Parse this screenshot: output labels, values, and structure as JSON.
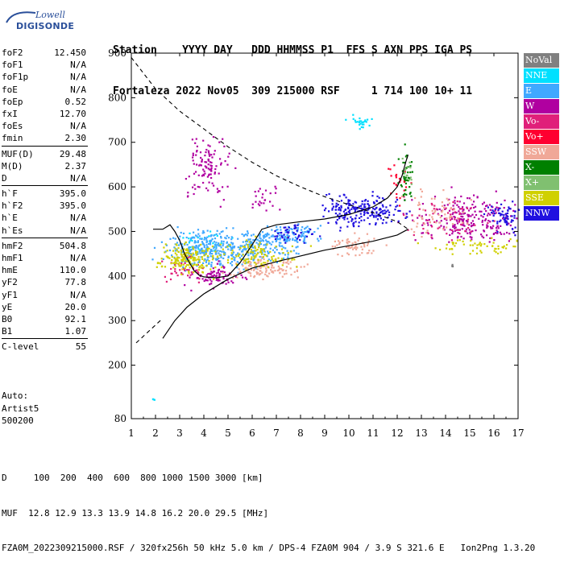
{
  "logo": {
    "brand_top": "Lowell",
    "brand_main": "DIGISONDE"
  },
  "header": {
    "line1": "Station    YYYY DAY   DDD HHMMSS P1  FFS S AXN PPS IGA PS",
    "line2": "Fortaleza 2022 Nov05  309 215000 RSF     1 714 100 10+ 11"
  },
  "params": {
    "groups": [
      [
        {
          "k": "foF2",
          "v": "12.450"
        },
        {
          "k": "foF1",
          "v": "N/A"
        },
        {
          "k": "foF1p",
          "v": "N/A"
        },
        {
          "k": "foE",
          "v": "N/A"
        },
        {
          "k": "foEp",
          "v": "0.52"
        },
        {
          "k": "fxI",
          "v": "12.70"
        },
        {
          "k": "foEs",
          "v": "N/A"
        },
        {
          "k": "fmin",
          "v": "2.30"
        }
      ],
      [
        {
          "k": "MUF(D)",
          "v": "29.48"
        },
        {
          "k": "M(D)",
          "v": "2.37"
        },
        {
          "k": "D",
          "v": "N/A"
        }
      ],
      [
        {
          "k": "h`F",
          "v": "395.0"
        },
        {
          "k": "h`F2",
          "v": "395.0"
        },
        {
          "k": "h`E",
          "v": "N/A"
        },
        {
          "k": "h`Es",
          "v": "N/A"
        }
      ],
      [
        {
          "k": "hmF2",
          "v": "504.8"
        },
        {
          "k": "hmF1",
          "v": "N/A"
        },
        {
          "k": "hmE",
          "v": "110.0"
        },
        {
          "k": "yF2",
          "v": "77.8"
        },
        {
          "k": "yF1",
          "v": "N/A"
        },
        {
          "k": "yE",
          "v": "20.0"
        },
        {
          "k": "B0",
          "v": "92.1"
        },
        {
          "k": "B1",
          "v": "1.07"
        }
      ],
      [
        {
          "k": "C-level",
          "v": "55"
        }
      ]
    ]
  },
  "auto": {
    "line1": "Auto:",
    "line2": "Artist5",
    "line3": "500200"
  },
  "legend": [
    {
      "label": "NoVal",
      "color": "#808080"
    },
    {
      "label": "NNE",
      "color": "#00e0ff"
    },
    {
      "label": "E",
      "color": "#40a8ff"
    },
    {
      "label": "W",
      "color": "#b000a0"
    },
    {
      "label": "Vo-",
      "color": "#e0207a"
    },
    {
      "label": "Vo+",
      "color": "#ff0030"
    },
    {
      "label": "SSW",
      "color": "#f0a898"
    },
    {
      "label": "X-",
      "color": "#008000"
    },
    {
      "label": "X+",
      "color": "#80c070"
    },
    {
      "label": "SSE",
      "color": "#d0d000"
    },
    {
      "label": "NNW",
      "color": "#2010e0"
    }
  ],
  "footer": {
    "line1": "D     100  200  400  600  800 1000 1500 3000 [km]",
    "line2": "MUF  12.8 12.9 13.3 13.9 14.8 16.2 20.0 29.5 [MHz]",
    "line3": "FZA0M_2022309215000.RSF / 320fx256h 50 kHz 5.0 km / DPS-4 FZA0M 904 / 3.9 S 321.6 E   Ion2Png 1.3.20"
  },
  "chart_data": {
    "type": "scatter",
    "title": "",
    "xlabel": "",
    "ylabel": "",
    "xlim": [
      1,
      17
    ],
    "ylim": [
      80,
      900
    ],
    "x_ticks": [
      1,
      2,
      3,
      4,
      5,
      6,
      7,
      8,
      9,
      10,
      11,
      12,
      13,
      14,
      15,
      16,
      17
    ],
    "y_ticks": [
      80,
      200,
      300,
      400,
      500,
      600,
      700,
      800,
      900
    ],
    "grid": false,
    "legend_position": "right",
    "virtual_height_trace": [
      {
        "x": 1.9,
        "y": 505
      },
      {
        "x": 2.3,
        "y": 505
      },
      {
        "x": 2.6,
        "y": 515
      },
      {
        "x": 2.8,
        "y": 500
      },
      {
        "x": 3.0,
        "y": 480
      },
      {
        "x": 3.2,
        "y": 450
      },
      {
        "x": 3.4,
        "y": 430
      },
      {
        "x": 3.6,
        "y": 412
      },
      {
        "x": 3.8,
        "y": 402
      },
      {
        "x": 4.0,
        "y": 398
      },
      {
        "x": 4.5,
        "y": 396
      },
      {
        "x": 5.0,
        "y": 400
      },
      {
        "x": 5.5,
        "y": 430
      },
      {
        "x": 6.0,
        "y": 470
      },
      {
        "x": 6.4,
        "y": 505
      },
      {
        "x": 7.0,
        "y": 515
      },
      {
        "x": 8.0,
        "y": 522
      },
      {
        "x": 9.0,
        "y": 528
      },
      {
        "x": 10.0,
        "y": 538
      },
      {
        "x": 11.0,
        "y": 555
      },
      {
        "x": 11.6,
        "y": 575
      },
      {
        "x": 12.0,
        "y": 600
      },
      {
        "x": 12.2,
        "y": 625
      },
      {
        "x": 12.35,
        "y": 655
      },
      {
        "x": 12.45,
        "y": 672
      }
    ],
    "real_height_profile": [
      {
        "x": 2.3,
        "y": 260
      },
      {
        "x": 2.8,
        "y": 300
      },
      {
        "x": 3.3,
        "y": 330
      },
      {
        "x": 4.0,
        "y": 360
      },
      {
        "x": 5.0,
        "y": 393
      },
      {
        "x": 6.0,
        "y": 418
      },
      {
        "x": 7.0,
        "y": 432
      },
      {
        "x": 8.0,
        "y": 445
      },
      {
        "x": 9.0,
        "y": 458
      },
      {
        "x": 10.0,
        "y": 468
      },
      {
        "x": 11.0,
        "y": 478
      },
      {
        "x": 12.0,
        "y": 492
      },
      {
        "x": 12.45,
        "y": 505
      }
    ],
    "profile_extrapolation_upper": [
      {
        "x": 1.0,
        "y": 890
      },
      {
        "x": 2.0,
        "y": 820
      },
      {
        "x": 3.0,
        "y": 770
      },
      {
        "x": 4.0,
        "y": 730
      },
      {
        "x": 5.0,
        "y": 690
      },
      {
        "x": 6.0,
        "y": 655
      },
      {
        "x": 7.0,
        "y": 625
      },
      {
        "x": 8.0,
        "y": 600
      },
      {
        "x": 9.0,
        "y": 578
      },
      {
        "x": 10.0,
        "y": 560
      },
      {
        "x": 11.0,
        "y": 542
      },
      {
        "x": 12.0,
        "y": 522
      },
      {
        "x": 12.45,
        "y": 505
      }
    ],
    "profile_extrapolation_lower": [
      {
        "x": 1.2,
        "y": 250
      },
      {
        "x": 1.6,
        "y": 270
      },
      {
        "x": 2.0,
        "y": 290
      },
      {
        "x": 2.3,
        "y": 305
      }
    ],
    "echo_clusters": [
      {
        "series": "NoVal",
        "color": "#808080",
        "cx": 14.2,
        "cy": 425,
        "sx": 0.05,
        "sy": 3,
        "n": 4
      },
      {
        "series": "NNE",
        "color": "#00e0ff",
        "cx": 10.5,
        "cy": 745,
        "sx": 0.25,
        "sy": 8,
        "n": 25
      },
      {
        "series": "NNE",
        "color": "#00e0ff",
        "cx": 4.0,
        "cy": 480,
        "sx": 0.5,
        "sy": 10,
        "n": 30
      },
      {
        "series": "NNE",
        "color": "#00e0ff",
        "cx": 1.9,
        "cy": 125,
        "sx": 0.02,
        "sy": 2,
        "n": 3
      },
      {
        "series": "E",
        "color": "#40a8ff",
        "cx": 4.2,
        "cy": 460,
        "sx": 0.9,
        "sy": 20,
        "n": 320
      },
      {
        "series": "E",
        "color": "#40a8ff",
        "cx": 6.5,
        "cy": 470,
        "sx": 0.6,
        "sy": 18,
        "n": 150
      },
      {
        "series": "E",
        "color": "#40a8ff",
        "cx": 7.8,
        "cy": 495,
        "sx": 0.6,
        "sy": 12,
        "n": 80
      },
      {
        "series": "W",
        "color": "#b000a0",
        "cx": 4.1,
        "cy": 650,
        "sx": 0.45,
        "sy": 35,
        "n": 110
      },
      {
        "series": "W",
        "color": "#b000a0",
        "cx": 4.5,
        "cy": 400,
        "sx": 0.6,
        "sy": 12,
        "n": 80
      },
      {
        "series": "W",
        "color": "#b000a0",
        "cx": 15.0,
        "cy": 530,
        "sx": 1.1,
        "sy": 25,
        "n": 240
      },
      {
        "series": "W",
        "color": "#b000a0",
        "cx": 6.5,
        "cy": 578,
        "sx": 0.3,
        "sy": 15,
        "n": 25
      },
      {
        "series": "Vo-",
        "color": "#e0207a",
        "cx": 3.0,
        "cy": 420,
        "sx": 0.5,
        "sy": 15,
        "n": 40
      },
      {
        "series": "Vo-",
        "color": "#e0207a",
        "cx": 14.0,
        "cy": 530,
        "sx": 0.9,
        "sy": 25,
        "n": 60
      },
      {
        "series": "Vo+",
        "color": "#ff0030",
        "cx": 12.0,
        "cy": 610,
        "sx": 0.2,
        "sy": 20,
        "n": 25
      },
      {
        "series": "SSW",
        "color": "#f0a898",
        "cx": 6.5,
        "cy": 420,
        "sx": 0.8,
        "sy": 12,
        "n": 120
      },
      {
        "series": "SSW",
        "color": "#f0a898",
        "cx": 10.2,
        "cy": 470,
        "sx": 0.5,
        "sy": 12,
        "n": 60
      },
      {
        "series": "SSW",
        "color": "#f0a898",
        "cx": 13.6,
        "cy": 545,
        "sx": 0.7,
        "sy": 25,
        "n": 60
      },
      {
        "series": "X-",
        "color": "#008000",
        "cx": 12.3,
        "cy": 630,
        "sx": 0.15,
        "sy": 30,
        "n": 40
      },
      {
        "series": "X+",
        "color": "#80c070",
        "cx": 12.4,
        "cy": 640,
        "sx": 0.1,
        "sy": 20,
        "n": 15
      },
      {
        "series": "SSE",
        "color": "#d0d000",
        "cx": 3.2,
        "cy": 440,
        "sx": 0.5,
        "sy": 15,
        "n": 160
      },
      {
        "series": "SSE",
        "color": "#d0d000",
        "cx": 6.0,
        "cy": 450,
        "sx": 0.9,
        "sy": 15,
        "n": 120
      },
      {
        "series": "SSE",
        "color": "#d0d000",
        "cx": 15.5,
        "cy": 470,
        "sx": 1.0,
        "sy": 10,
        "n": 60
      },
      {
        "series": "NNW",
        "color": "#2010e0",
        "cx": 10.5,
        "cy": 550,
        "sx": 0.8,
        "sy": 18,
        "n": 220
      },
      {
        "series": "NNW",
        "color": "#2010e0",
        "cx": 16.5,
        "cy": 535,
        "sx": 0.4,
        "sy": 15,
        "n": 70
      },
      {
        "series": "NNW",
        "color": "#2010e0",
        "cx": 7.8,
        "cy": 500,
        "sx": 0.4,
        "sy": 10,
        "n": 45
      }
    ]
  }
}
